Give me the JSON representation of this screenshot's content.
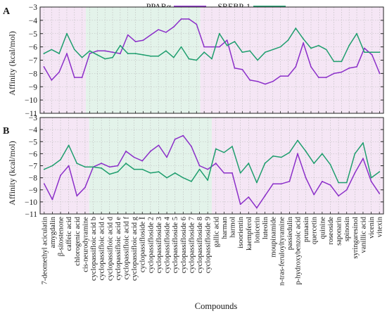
{
  "figure": {
    "xlabel": "Compounds",
    "ylabel": "Affinity (kcal/mol)"
  },
  "legend": {
    "entries": [
      {
        "label": "PPARα",
        "color": "#8b2fc9"
      },
      {
        "label": "SREBP-1",
        "color": "#1f9e6e"
      }
    ]
  },
  "colors": {
    "PPARα": "#8b2fc9",
    "SREBP-1": "#1f9e6e",
    "region_purple": "#f5e6f5",
    "region_green": "#e3f3ea"
  },
  "chart_data": [
    {
      "type": "line",
      "panel": "A",
      "ylim": [
        -11,
        -3
      ],
      "yticks": [
        -3,
        -4,
        -5,
        -6,
        -7,
        -8,
        -9,
        -10,
        -11
      ],
      "grid": true,
      "legend_position": "top",
      "shaded_regions": [
        {
          "from": "7-deomethyl aciculatin",
          "to": "cis-neurodyramine",
          "color": "purple"
        },
        {
          "from": "cyclopassifloic acid b",
          "to": "cyclopassifloside 9",
          "color": "green"
        },
        {
          "from": "gallic acid",
          "to": "vitexin",
          "color": "purple"
        }
      ],
      "series": [
        {
          "name": "PPARα",
          "values": [
            -7.5,
            -8.5,
            -7.9,
            -6.5,
            -8.3,
            -8.3,
            -6.5,
            -6.3,
            -6.3,
            -6.4,
            -6.5,
            -5.1,
            -5.6,
            -5.5,
            -5.1,
            -4.7,
            -4.9,
            -4.5,
            -3.9,
            -3.9,
            -4.3,
            -6.0,
            -6.0,
            -6.0,
            -5.5,
            -7.6,
            -7.7,
            -8.5,
            -8.6,
            -8.8,
            -8.6,
            -8.2,
            -8.2,
            -7.5,
            -5.7,
            -7.5,
            -8.3,
            -8.3,
            -8.0,
            -7.9,
            -7.6,
            -7.5,
            -6.1,
            -6.6,
            -8.0
          ]
        },
        {
          "name": "SREBP-1",
          "values": [
            -6.5,
            -6.2,
            -6.5,
            -5.0,
            -6.2,
            -6.8,
            -6.3,
            -6.6,
            -6.9,
            -6.8,
            -5.9,
            -6.5,
            -6.5,
            -6.6,
            -6.7,
            -6.7,
            -6.3,
            -6.8,
            -6.0,
            -6.9,
            -7.0,
            -6.4,
            -6.9,
            -5.0,
            -5.9,
            -5.6,
            -6.4,
            -6.3,
            -7.0,
            -6.4,
            -6.2,
            -6.0,
            -5.5,
            -4.6,
            -5.4,
            -6.1,
            -5.9,
            -6.2,
            -7.1,
            -7.1,
            -5.9,
            -5.0,
            -6.4,
            -6.4,
            -6.4
          ]
        }
      ]
    },
    {
      "type": "line",
      "panel": "B",
      "ylim": [
        -11,
        -3
      ],
      "yticks": [
        -3,
        -4,
        -5,
        -6,
        -7,
        -8,
        -9,
        -10,
        -11
      ],
      "grid": true,
      "categories": [
        "7-deomethyl aciculatin",
        "amygdalin",
        "β-sitostenone",
        "caffeic acid",
        "chlorogenic acid",
        "cis-neurodyramine",
        "cyclopassifloic acid b",
        "cyclopassifloic acid c",
        "cyclopassifloic acid d",
        "cyclopassifloic acid e",
        "cyclopassifloic acid f",
        "cyclopassifloic acid g",
        "cyclopassifloside Ⅰ",
        "cyclopassifloside 2",
        "cyclopassifloside 3",
        "cyclopassifloside 4",
        "cyclopassifloside 5",
        "cyclopassifloside 6",
        "cyclopassifloside 7",
        "cyclopassifloside 8",
        "cyclopassifloside 9",
        "gallic acid",
        "harman",
        "harmol",
        "isoorientin",
        "kaempferol",
        "lonicerin",
        "luteolin",
        "moupinamide",
        "n-tras-feruloyltyramine",
        "passiedulin",
        "p-hydroxybenzoic acid",
        "prunasin",
        "quercetin",
        "quinine",
        "roseoside",
        "saponarin",
        "spinosin",
        "syringaresinol",
        "vanillic acid",
        "vicenin",
        "vitexin"
      ],
      "shaded_regions": [
        {
          "from": "7-deomethyl aciculatin",
          "to": "cis-neurodyramine",
          "color": "purple"
        },
        {
          "from": "cyclopassifloic acid b",
          "to": "cyclopassifloside 9",
          "color": "green"
        },
        {
          "from": "gallic acid",
          "to": "vitexin",
          "color": "purple"
        }
      ],
      "series": [
        {
          "name": "PPARα",
          "values": [
            -8.5,
            -9.8,
            -7.8,
            -7.0,
            -9.5,
            -8.8,
            -7.1,
            -6.8,
            -7.1,
            -7.0,
            -5.8,
            -6.3,
            -6.6,
            -5.8,
            -5.3,
            -6.3,
            -4.8,
            -4.5,
            -5.4,
            -7.0,
            -7.3,
            -6.8,
            -7.6,
            -7.6,
            -10.2,
            -9.6,
            -10.5,
            -9.5,
            -8.5,
            -8.5,
            -8.3,
            -6.0,
            -8.0,
            -9.4,
            -8.3,
            -8.6,
            -9.5,
            -9.0,
            -7.6,
            -6.4,
            -8.3,
            -9.3
          ]
        },
        {
          "name": "SREBP-1",
          "values": [
            -7.3,
            -7.0,
            -6.5,
            -5.3,
            -6.8,
            -7.1,
            -7.1,
            -7.2,
            -7.7,
            -7.5,
            -6.8,
            -7.3,
            -7.3,
            -7.6,
            -7.5,
            -8.0,
            -7.6,
            -8.0,
            -8.3,
            -7.3,
            -8.2,
            -5.6,
            -5.9,
            -5.4,
            -7.6,
            -6.8,
            -8.4,
            -6.8,
            -6.2,
            -6.3,
            -5.9,
            -4.9,
            -5.8,
            -6.8,
            -6.0,
            -6.9,
            -8.4,
            -8.4,
            -6.0,
            -5.1,
            -8.0,
            -7.5
          ]
        }
      ]
    }
  ]
}
